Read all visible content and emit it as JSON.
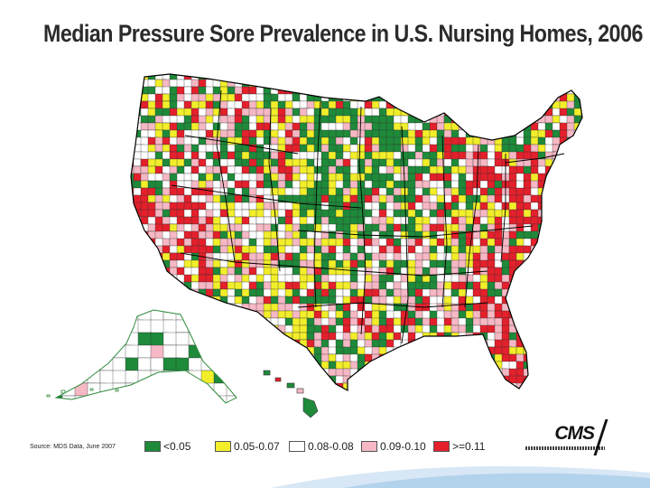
{
  "title": "Median Pressure Sore Prevalence in U.S. Nursing Homes, 2006",
  "source": "Source: MDS Data, June 2007",
  "logo_text": "CMS",
  "legend": [
    {
      "label": "<0.05",
      "color": "#1e8a3a"
    },
    {
      "label": "0.05-0.07",
      "color": "#f2ee2a"
    },
    {
      "label": "0.08-0.08",
      "color": "#ffffff"
    },
    {
      "label": "0.09-0.10",
      "color": "#f6b8c4"
    },
    {
      "label": ">=0.11",
      "color": "#e3202b"
    }
  ],
  "colors": {
    "county_border": "#333333",
    "state_border": "#000000",
    "alaska_outline": "#2e8b3c",
    "swoosh": "#b7d4ec"
  }
}
